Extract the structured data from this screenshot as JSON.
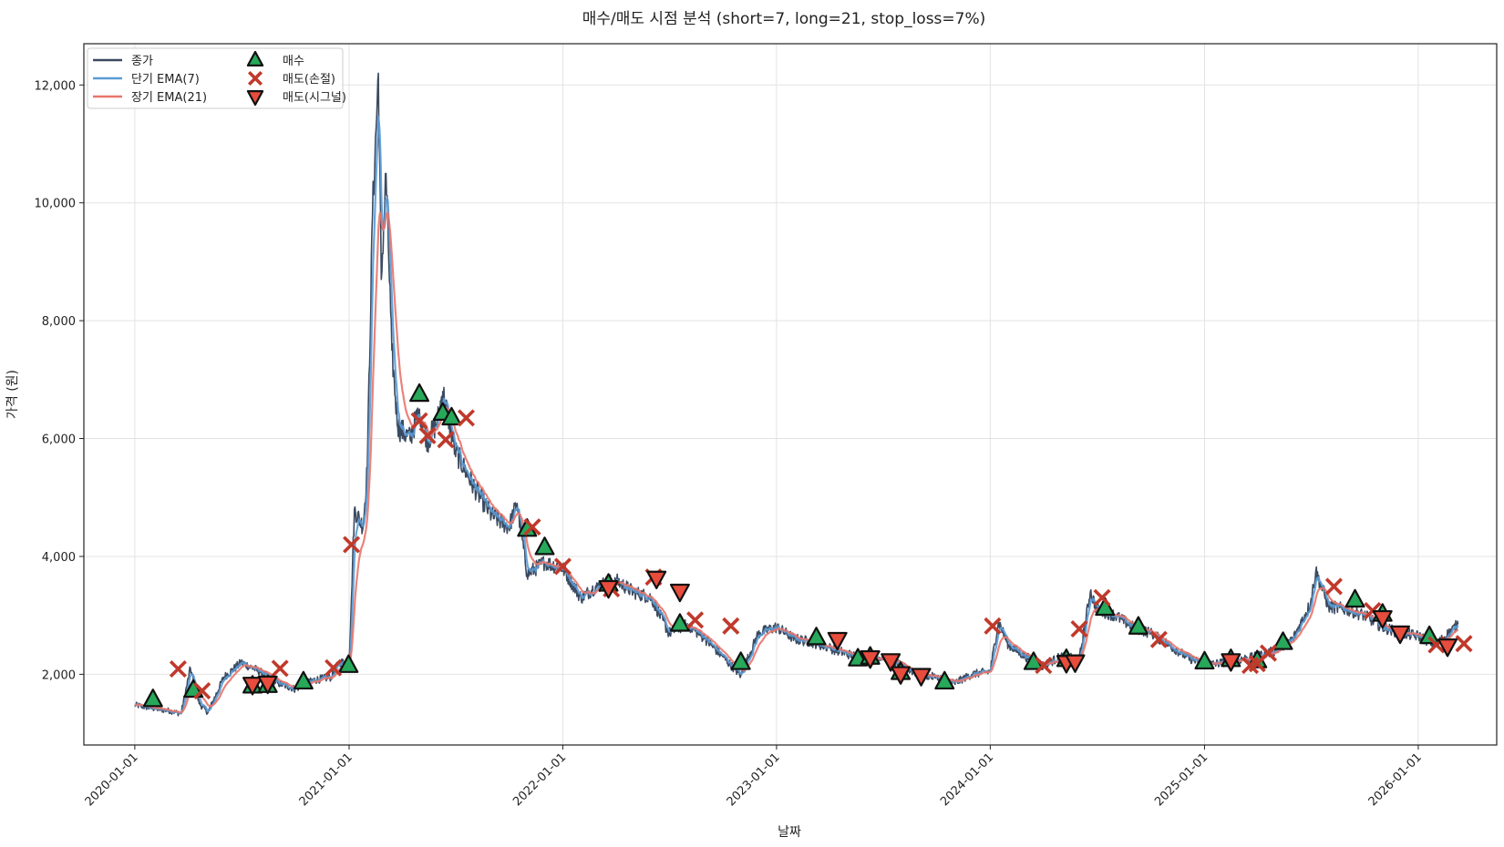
{
  "chart_data": {
    "type": "line",
    "title": "매수/매도 시점 분석 (short=7, long=21, stop_loss=7%)",
    "xlabel": "날짜",
    "ylabel": "가격 (원)",
    "ylim": [
      800,
      12700
    ],
    "xlim": [
      "2019-10-06",
      "2026-05-15"
    ],
    "grid": true,
    "legend_position": "top-left",
    "y_ticks": [
      {
        "value": 2000,
        "label": "2,000"
      },
      {
        "value": 4000,
        "label": "4,000"
      },
      {
        "value": 6000,
        "label": "6,000"
      },
      {
        "value": 8000,
        "label": "8,000"
      },
      {
        "value": 10000,
        "label": "10,000"
      },
      {
        "value": 12000,
        "label": "12,000"
      }
    ],
    "x_ticks": [
      "2020-01-01",
      "2021-01-01",
      "2022-01-01",
      "2023-01-01",
      "2024-01-01",
      "2025-01-01",
      "2026-01-01"
    ],
    "price_anchors": [
      [
        "2020-01-01",
        1480
      ],
      [
        "2020-02-01",
        1420
      ],
      [
        "2020-03-01",
        1380
      ],
      [
        "2020-03-20",
        1330
      ],
      [
        "2020-04-05",
        2100
      ],
      [
        "2020-04-20",
        1500
      ],
      [
        "2020-05-05",
        1350
      ],
      [
        "2020-06-01",
        1950
      ],
      [
        "2020-07-01",
        2200
      ],
      [
        "2020-08-01",
        2050
      ],
      [
        "2020-09-01",
        1850
      ],
      [
        "2020-10-01",
        1750
      ],
      [
        "2020-11-01",
        1900
      ],
      [
        "2020-12-01",
        1950
      ],
      [
        "2020-12-15",
        2200
      ],
      [
        "2021-01-01",
        2200
      ],
      [
        "2021-01-05",
        3300
      ],
      [
        "2021-01-10",
        4800
      ],
      [
        "2021-01-25",
        4500
      ],
      [
        "2021-02-01",
        5500
      ],
      [
        "2021-02-10",
        9800
      ],
      [
        "2021-02-20",
        12200
      ],
      [
        "2021-02-25",
        8700
      ],
      [
        "2021-03-05",
        10500
      ],
      [
        "2021-03-15",
        7500
      ],
      [
        "2021-03-25",
        6200
      ],
      [
        "2021-04-15",
        6000
      ],
      [
        "2021-05-01",
        6500
      ],
      [
        "2021-05-15",
        5950
      ],
      [
        "2021-06-01",
        6300
      ],
      [
        "2021-06-10",
        6800
      ],
      [
        "2021-07-01",
        5800
      ],
      [
        "2021-08-01",
        5200
      ],
      [
        "2021-09-01",
        4700
      ],
      [
        "2021-10-01",
        4500
      ],
      [
        "2021-10-15",
        4900
      ],
      [
        "2021-11-01",
        3700
      ],
      [
        "2021-12-01",
        3900
      ],
      [
        "2022-01-01",
        3800
      ],
      [
        "2022-02-01",
        3300
      ],
      [
        "2022-03-01",
        3500
      ],
      [
        "2022-04-01",
        3600
      ],
      [
        "2022-05-01",
        3400
      ],
      [
        "2022-06-01",
        3300
      ],
      [
        "2022-07-01",
        2700
      ],
      [
        "2022-08-01",
        2850
      ],
      [
        "2022-09-01",
        2600
      ],
      [
        "2022-10-01",
        2300
      ],
      [
        "2022-11-01",
        1980
      ],
      [
        "2022-12-01",
        2700
      ],
      [
        "2023-01-01",
        2800
      ],
      [
        "2023-02-01",
        2600
      ],
      [
        "2023-03-01",
        2550
      ],
      [
        "2023-04-01",
        2450
      ],
      [
        "2023-05-01",
        2350
      ],
      [
        "2023-06-01",
        2250
      ],
      [
        "2023-07-01",
        2300
      ],
      [
        "2023-08-01",
        2150
      ],
      [
        "2023-09-01",
        2000
      ],
      [
        "2023-10-01",
        1950
      ],
      [
        "2023-11-01",
        1850
      ],
      [
        "2023-12-01",
        2000
      ],
      [
        "2024-01-01",
        2050
      ],
      [
        "2024-01-15",
        2900
      ],
      [
        "2024-02-01",
        2500
      ],
      [
        "2024-03-01",
        2300
      ],
      [
        "2024-04-01",
        2150
      ],
      [
        "2024-05-01",
        2300
      ],
      [
        "2024-06-01",
        2250
      ],
      [
        "2024-06-20",
        3400
      ],
      [
        "2024-07-01",
        3100
      ],
      [
        "2024-08-01",
        3000
      ],
      [
        "2024-09-01",
        2800
      ],
      [
        "2024-10-01",
        2700
      ],
      [
        "2024-11-01",
        2500
      ],
      [
        "2024-12-01",
        2300
      ],
      [
        "2025-01-01",
        2150
      ],
      [
        "2025-02-01",
        2200
      ],
      [
        "2025-03-01",
        2250
      ],
      [
        "2025-04-01",
        2300
      ],
      [
        "2025-05-01",
        2400
      ],
      [
        "2025-06-01",
        2600
      ],
      [
        "2025-07-01",
        3200
      ],
      [
        "2025-07-10",
        3750
      ],
      [
        "2025-08-01",
        3150
      ],
      [
        "2025-09-01",
        3100
      ],
      [
        "2025-10-01",
        3000
      ],
      [
        "2025-11-01",
        2800
      ],
      [
        "2025-12-01",
        2700
      ],
      [
        "2026-01-01",
        2650
      ],
      [
        "2026-02-01",
        2500
      ],
      [
        "2026-03-10",
        2850
      ]
    ],
    "series": [
      {
        "name": "종가",
        "color": "#3b4a60",
        "source": "price_anchors"
      },
      {
        "name": "단기 EMA(7)",
        "color": "#5b9bd5",
        "span": 7
      },
      {
        "name": "장기 EMA(21)",
        "color": "#e8766b",
        "span": 21
      }
    ],
    "markers": [
      {
        "name": "매수",
        "shape": "triangle-up",
        "color": "#27a85a",
        "points": [
          [
            "2020-02-01",
            1570
          ],
          [
            "2020-04-10",
            1730
          ],
          [
            "2020-07-20",
            1800
          ],
          [
            "2020-08-15",
            1810
          ],
          [
            "2020-10-15",
            1870
          ],
          [
            "2020-12-31",
            2150
          ],
          [
            "2021-05-01",
            6750
          ],
          [
            "2021-06-10",
            6430
          ],
          [
            "2021-06-25",
            6350
          ],
          [
            "2021-11-01",
            4460
          ],
          [
            "2021-12-01",
            4150
          ],
          [
            "2022-03-20",
            3530
          ],
          [
            "2022-07-20",
            2850
          ],
          [
            "2022-11-01",
            2200
          ],
          [
            "2023-03-10",
            2620
          ],
          [
            "2023-05-20",
            2260
          ],
          [
            "2023-06-10",
            2290
          ],
          [
            "2023-08-01",
            2030
          ],
          [
            "2023-10-15",
            1870
          ],
          [
            "2024-03-15",
            2200
          ],
          [
            "2024-05-10",
            2250
          ],
          [
            "2024-07-15",
            3120
          ],
          [
            "2024-09-10",
            2800
          ],
          [
            "2025-01-01",
            2210
          ],
          [
            "2025-02-15",
            2250
          ],
          [
            "2025-04-01",
            2230
          ],
          [
            "2025-05-15",
            2540
          ],
          [
            "2025-09-15",
            3260
          ],
          [
            "2025-11-01",
            3020
          ],
          [
            "2026-01-20",
            2640
          ]
        ]
      },
      {
        "name": "매도(손절)",
        "shape": "x",
        "color": "#c0392b",
        "points": [
          [
            "2020-03-15",
            2090
          ],
          [
            "2020-04-25",
            1720
          ],
          [
            "2020-09-05",
            2100
          ],
          [
            "2020-12-05",
            2110
          ],
          [
            "2021-01-05",
            4200
          ],
          [
            "2021-05-01",
            6300
          ],
          [
            "2021-05-15",
            6050
          ],
          [
            "2021-06-15",
            5980
          ],
          [
            "2021-07-20",
            6350
          ],
          [
            "2021-11-10",
            4500
          ],
          [
            "2022-01-01",
            3830
          ],
          [
            "2022-03-25",
            3450
          ],
          [
            "2022-06-05",
            3650
          ],
          [
            "2022-08-15",
            2920
          ],
          [
            "2022-10-15",
            2820
          ],
          [
            "2024-01-05",
            2820
          ],
          [
            "2024-04-01",
            2150
          ],
          [
            "2024-06-01",
            2770
          ],
          [
            "2024-07-10",
            3300
          ],
          [
            "2024-10-15",
            2590
          ],
          [
            "2025-03-20",
            2150
          ],
          [
            "2025-04-01",
            2180
          ],
          [
            "2025-04-20",
            2360
          ],
          [
            "2025-08-10",
            3490
          ],
          [
            "2025-10-15",
            3080
          ],
          [
            "2026-02-01",
            2500
          ],
          [
            "2026-03-20",
            2520
          ]
        ]
      },
      {
        "name": "매도(시그널)",
        "shape": "triangle-down",
        "color": "#e74c3c",
        "points": [
          [
            "2020-07-20",
            1830
          ],
          [
            "2020-08-15",
            1850
          ],
          [
            "2022-03-20",
            3470
          ],
          [
            "2022-06-10",
            3630
          ],
          [
            "2022-07-20",
            3410
          ],
          [
            "2023-04-15",
            2590
          ],
          [
            "2023-06-10",
            2280
          ],
          [
            "2023-07-15",
            2230
          ],
          [
            "2023-08-01",
            2010
          ],
          [
            "2023-09-05",
            1980
          ],
          [
            "2024-05-10",
            2200
          ],
          [
            "2024-05-25",
            2210
          ],
          [
            "2025-02-15",
            2230
          ],
          [
            "2025-11-01",
            2960
          ],
          [
            "2025-12-01",
            2700
          ],
          [
            "2026-02-20",
            2480
          ]
        ]
      }
    ],
    "legend": [
      {
        "label": "종가",
        "kind": "line",
        "color": "#3b4a60"
      },
      {
        "label": "단기 EMA(7)",
        "kind": "line",
        "color": "#5b9bd5"
      },
      {
        "label": "장기 EMA(21)",
        "kind": "line",
        "color": "#e8766b"
      },
      {
        "label": "매수",
        "kind": "triangle-up",
        "color": "#27a85a"
      },
      {
        "label": "매도(손절)",
        "kind": "x",
        "color": "#c0392b"
      },
      {
        "label": "매도(시그널)",
        "kind": "triangle-down",
        "color": "#e74c3c"
      }
    ]
  }
}
